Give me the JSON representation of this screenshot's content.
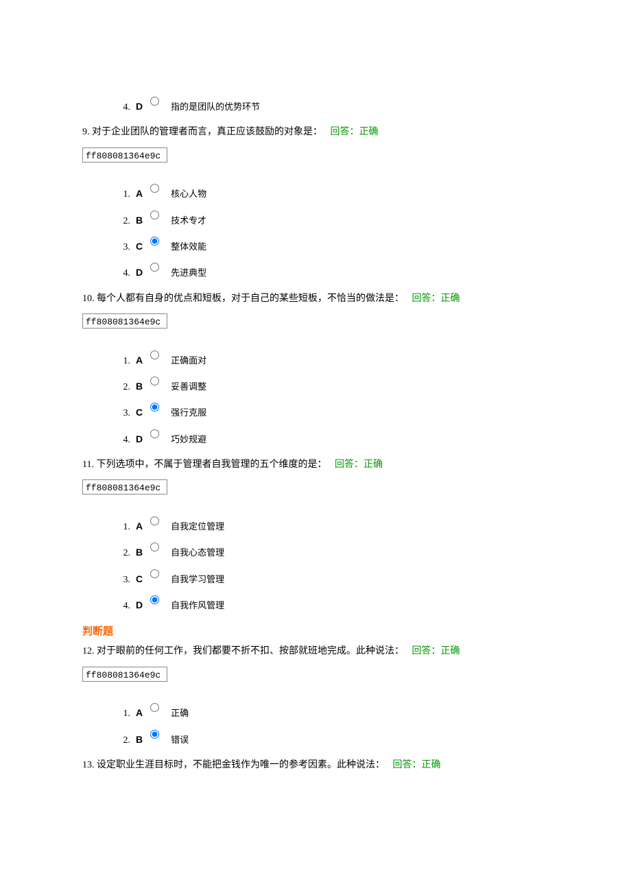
{
  "hash_code": "ff808081364e9c",
  "section_judge_title": "判断题",
  "q8_tail": {
    "opt4": {
      "num": "4.",
      "letter": "D",
      "selected": false,
      "text": "指的是团队的优势环节"
    }
  },
  "q9": {
    "num": "9.",
    "text": "对于企业团队的管理者而言，真正应该鼓励的对象是：",
    "answer": "回答：正确",
    "opts": {
      "1": {
        "num": "1.",
        "letter": "A",
        "selected": false,
        "text": "核心人物"
      },
      "2": {
        "num": "2.",
        "letter": "B",
        "selected": false,
        "text": "技术专才"
      },
      "3": {
        "num": "3.",
        "letter": "C",
        "selected": true,
        "text": "整体效能"
      },
      "4": {
        "num": "4.",
        "letter": "D",
        "selected": false,
        "text": "先进典型"
      }
    }
  },
  "q10": {
    "num": "10.",
    "text": "每个人都有自身的优点和短板，对于自己的某些短板，不恰当的做法是：",
    "answer": "回答：正确",
    "opts": {
      "1": {
        "num": "1.",
        "letter": "A",
        "selected": false,
        "text": "正确面对"
      },
      "2": {
        "num": "2.",
        "letter": "B",
        "selected": false,
        "text": "妥善调整"
      },
      "3": {
        "num": "3.",
        "letter": "C",
        "selected": true,
        "text": "强行克服"
      },
      "4": {
        "num": "4.",
        "letter": "D",
        "selected": false,
        "text": "巧妙规避"
      }
    }
  },
  "q11": {
    "num": "11.",
    "text": "下列选项中，不属于管理者自我管理的五个维度的是：",
    "answer": "回答：正确",
    "opts": {
      "1": {
        "num": "1.",
        "letter": "A",
        "selected": false,
        "text": "自我定位管理"
      },
      "2": {
        "num": "2.",
        "letter": "B",
        "selected": false,
        "text": "自我心态管理"
      },
      "3": {
        "num": "3.",
        "letter": "C",
        "selected": false,
        "text": "自我学习管理"
      },
      "4": {
        "num": "4.",
        "letter": "D",
        "selected": true,
        "text": "自我作风管理"
      }
    }
  },
  "q12": {
    "num": "12.",
    "text": "对于眼前的任何工作，我们都要不折不扣、按部就班地完成。此种说法：",
    "answer": "回答：正确",
    "opts": {
      "1": {
        "num": "1.",
        "letter": "A",
        "selected": false,
        "text": "正确"
      },
      "2": {
        "num": "2.",
        "letter": "B",
        "selected": true,
        "text": "错误"
      }
    }
  },
  "q13": {
    "num": "13.",
    "text": "设定职业生涯目标时，不能把金钱作为唯一的参考因素。此种说法：",
    "answer": "回答：正确"
  }
}
